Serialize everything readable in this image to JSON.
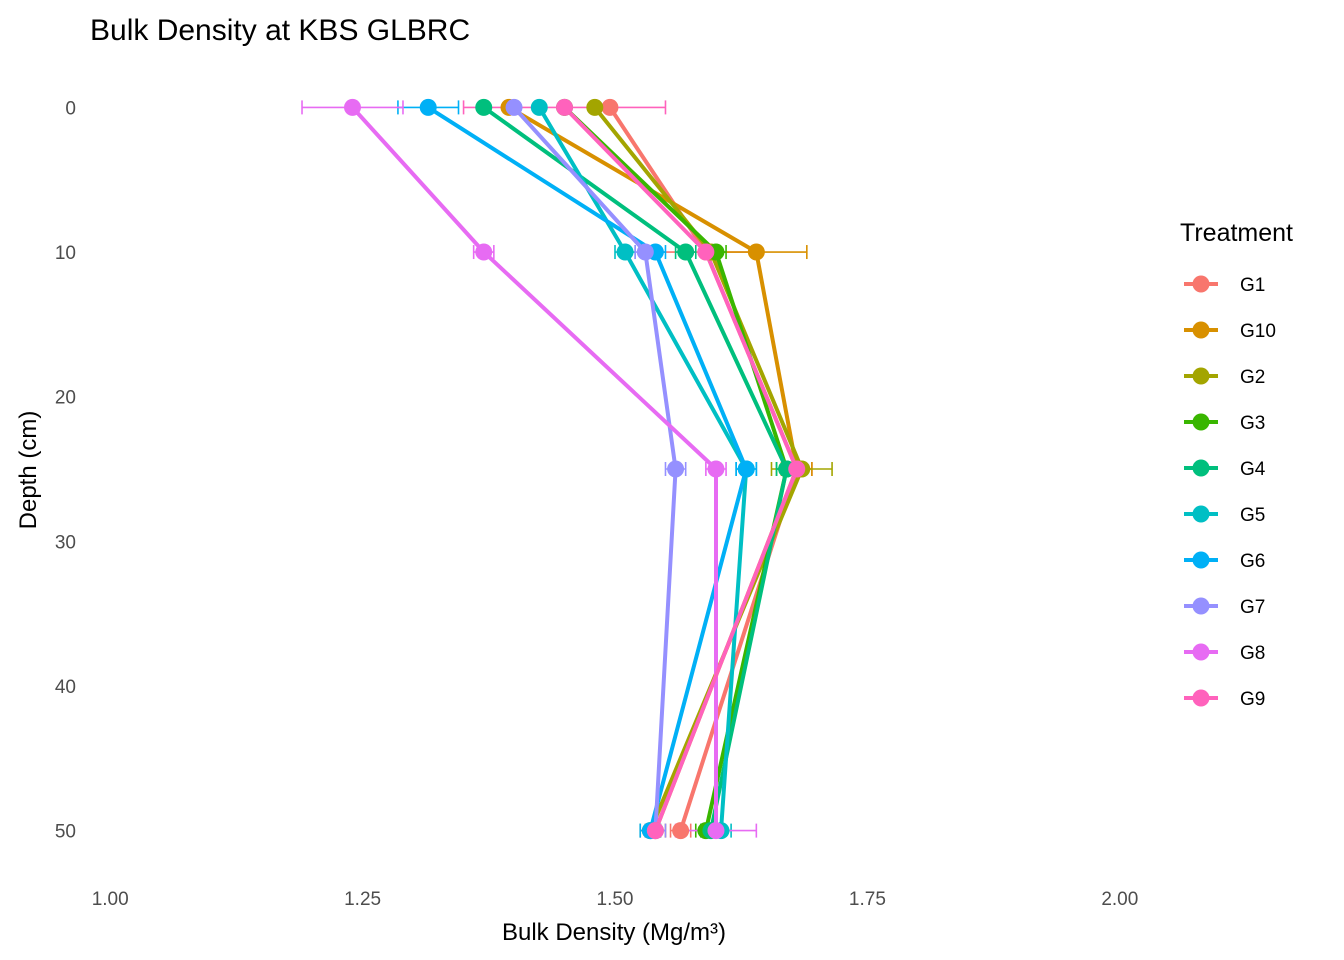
{
  "chart_data": {
    "type": "line",
    "title": "Bulk Density at KBS GLBRC",
    "xlabel": "Bulk Density (Mg/m³)",
    "ylabel": "Depth (cm)",
    "xlim": [
      0.98,
      2.02
    ],
    "ylim": [
      -3,
      53
    ],
    "y_reversed": true,
    "x_ticks": [
      "1.00",
      "1.25",
      "1.50",
      "1.75",
      "2.00"
    ],
    "y_ticks": [
      "0",
      "10",
      "20",
      "30",
      "40",
      "50"
    ],
    "grid": false,
    "legend": {
      "title": "Treatment",
      "position": "right"
    },
    "depths": [
      0,
      10,
      25,
      50
    ],
    "series": [
      {
        "name": "G1",
        "color": "#F8766D",
        "values": [
          1.495,
          1.59,
          1.68,
          1.565
        ],
        "errors": [
          0.0,
          0.05,
          0.015,
          0.01
        ]
      },
      {
        "name": "G10",
        "color": "#D89000",
        "values": [
          1.395,
          1.64,
          1.68,
          1.54
        ],
        "errors": [
          0.0,
          0.05,
          0.015,
          0.01
        ]
      },
      {
        "name": "G2",
        "color": "#A3A500",
        "values": [
          1.48,
          1.595,
          1.685,
          1.535
        ],
        "errors": [
          0.0,
          0.0,
          0.03,
          0.01
        ]
      },
      {
        "name": "G3",
        "color": "#39B600",
        "values": [
          1.45,
          1.6,
          1.67,
          1.59
        ],
        "errors": [
          0.0,
          0.01,
          0.01,
          0.01
        ]
      },
      {
        "name": "G4",
        "color": "#00BF7D",
        "values": [
          1.37,
          1.57,
          1.67,
          1.595
        ],
        "errors": [
          0.0,
          0.01,
          0.01,
          0.01
        ]
      },
      {
        "name": "G5",
        "color": "#00BFC4",
        "values": [
          1.425,
          1.51,
          1.63,
          1.605
        ],
        "errors": [
          0.0,
          0.01,
          0.01,
          0.01
        ]
      },
      {
        "name": "G6",
        "color": "#00B0F6",
        "values": [
          1.315,
          1.54,
          1.63,
          1.535
        ],
        "errors": [
          0.03,
          0.01,
          0.01,
          0.01
        ]
      },
      {
        "name": "G7",
        "color": "#9590FF",
        "values": [
          1.4,
          1.53,
          1.56,
          1.54
        ],
        "errors": [
          0.0,
          0.01,
          0.01,
          0.01
        ]
      },
      {
        "name": "G8",
        "color": "#E76BF3",
        "values": [
          1.24,
          1.37,
          1.6,
          1.6
        ],
        "errors": [
          0.05,
          0.01,
          0.01,
          0.04
        ]
      },
      {
        "name": "G9",
        "color": "#FF62BC",
        "values": [
          1.45,
          1.59,
          1.68,
          1.54
        ],
        "errors": [
          0.1,
          0.0,
          0.0,
          0.0
        ]
      }
    ]
  }
}
